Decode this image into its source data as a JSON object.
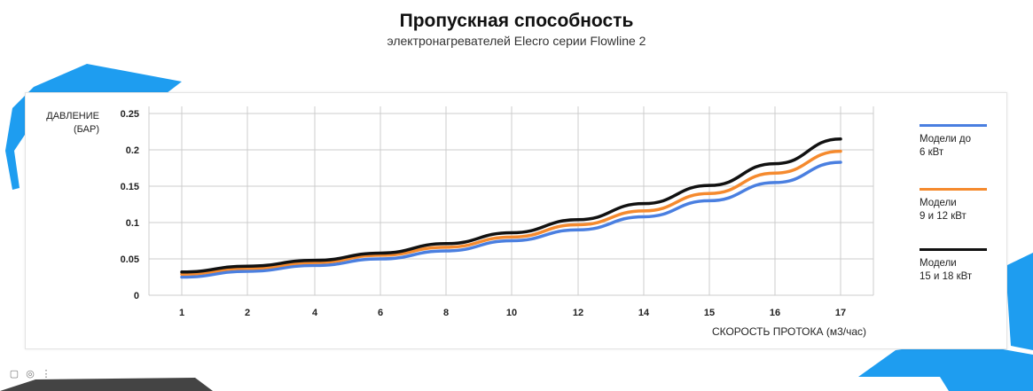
{
  "page": {
    "title": "Пропускная способность",
    "subtitle": "электронагревателей Elecro серии Flowline 2"
  },
  "colors": {
    "decor_blue": "#1e9df0",
    "series_1": "#4a7fe0",
    "series_2": "#f58a2e",
    "series_3": "#111111",
    "grid": "#cccccc"
  },
  "toolbar": {
    "items": [
      {
        "icon": "square-icon",
        "glyph": "▢"
      },
      {
        "icon": "settings-icon",
        "glyph": "◎"
      },
      {
        "icon": "more-icon",
        "glyph": "⋮"
      }
    ]
  },
  "chart_data": {
    "type": "line",
    "title": "Пропускная способность",
    "subtitle": "электронагревателей Elecro серии Flowline 2",
    "ylabel_line1": "ДАВЛЕНИЕ",
    "ylabel_line2": "(БАР)",
    "xlabel": "СКОРОСТЬ ПРОТОКА (м3/час)",
    "x_ticks": [
      "1",
      "2",
      "4",
      "6",
      "8",
      "10",
      "12",
      "14",
      "15",
      "16",
      "17"
    ],
    "y_ticks": [
      "0",
      "0.05",
      "0.1",
      "0.15",
      "0.2",
      "0.25"
    ],
    "ylim": [
      0,
      0.25
    ],
    "grid": true,
    "legend_position": "right",
    "series": [
      {
        "name_line1": "Модели до",
        "name_line2": "6 кВт",
        "color": "#4a7fe0",
        "values": [
          0.025,
          0.033,
          0.041,
          0.05,
          0.061,
          0.075,
          0.09,
          0.108,
          0.13,
          0.155,
          0.183
        ]
      },
      {
        "name_line1": "Модели",
        "name_line2": "9 и 12 кВт",
        "color": "#f58a2e",
        "values": [
          0.029,
          0.037,
          0.045,
          0.055,
          0.066,
          0.08,
          0.097,
          0.116,
          0.14,
          0.168,
          0.198
        ]
      },
      {
        "name_line1": "Модели",
        "name_line2": "15 и 18 кВт",
        "color": "#111111",
        "values": [
          0.032,
          0.04,
          0.048,
          0.058,
          0.071,
          0.086,
          0.104,
          0.126,
          0.151,
          0.181,
          0.215
        ]
      }
    ]
  }
}
